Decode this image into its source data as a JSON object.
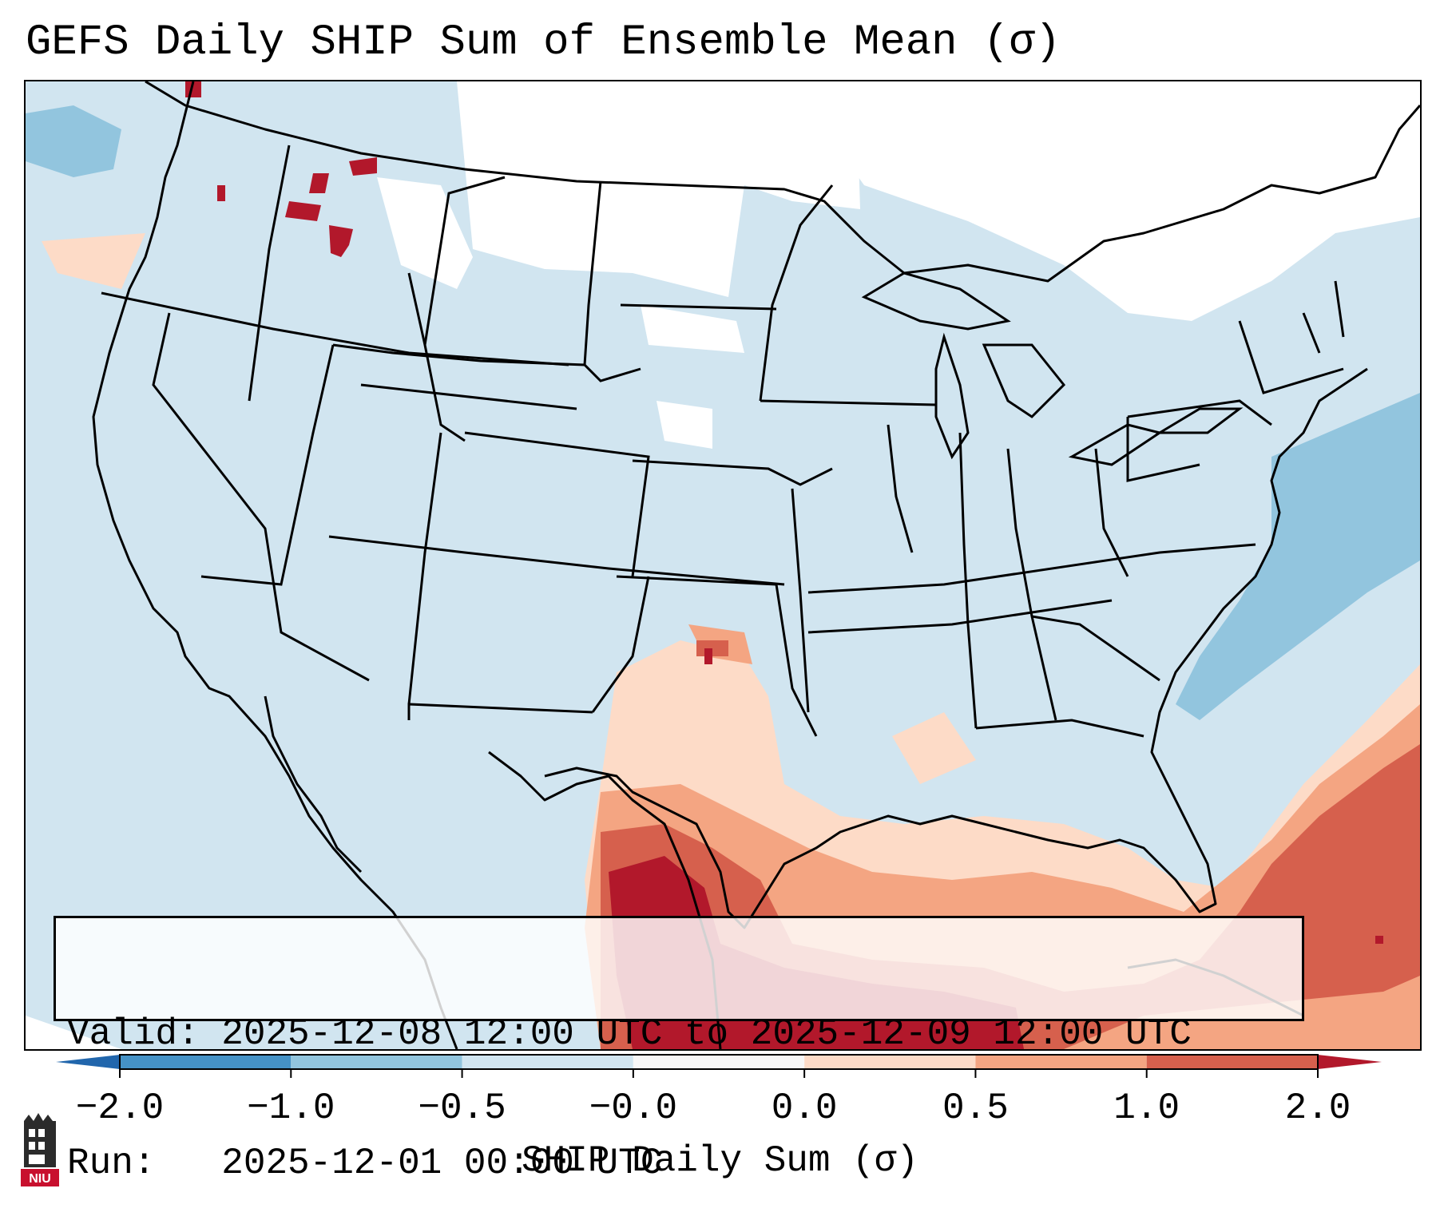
{
  "title": "GEFS Daily SHIP Sum of Ensemble Mean (σ)",
  "info_box": {
    "valid_line": "Valid: 2025-12-08 12:00 UTC to 2025-12-09 12:00 UTC",
    "run_line": "Run:   2025-12-01 00:00 UTC"
  },
  "colorbar": {
    "label": "SHIP Daily Sum (σ)",
    "tick_labels": [
      "−2.0",
      "−1.0",
      "−0.5",
      "−0.0",
      "0.0",
      "0.5",
      "1.0",
      "2.0"
    ],
    "bins": [
      {
        "from": -2.0,
        "to": -1.0,
        "color": "#4592c6"
      },
      {
        "from": -1.0,
        "to": -0.5,
        "color": "#92c5de"
      },
      {
        "from": -0.5,
        "to": -0.0,
        "color": "#d1e5f0"
      },
      {
        "from": -0.0,
        "to": 0.0,
        "color": "#f7f7f7"
      },
      {
        "from": 0.0,
        "to": 0.5,
        "color": "#fddbc7"
      },
      {
        "from": 0.5,
        "to": 1.0,
        "color": "#f4a582"
      },
      {
        "from": 1.0,
        "to": 2.0,
        "color": "#d6604d"
      }
    ],
    "under_color": "#2166ac",
    "over_color": "#b2182b"
  },
  "colors": {
    "background_field": "#d1e5f0",
    "strong_positive": "#b2182b",
    "borders": "#000000"
  },
  "logo": {
    "text": "NIU",
    "icon": "niu-tower-logo"
  }
}
